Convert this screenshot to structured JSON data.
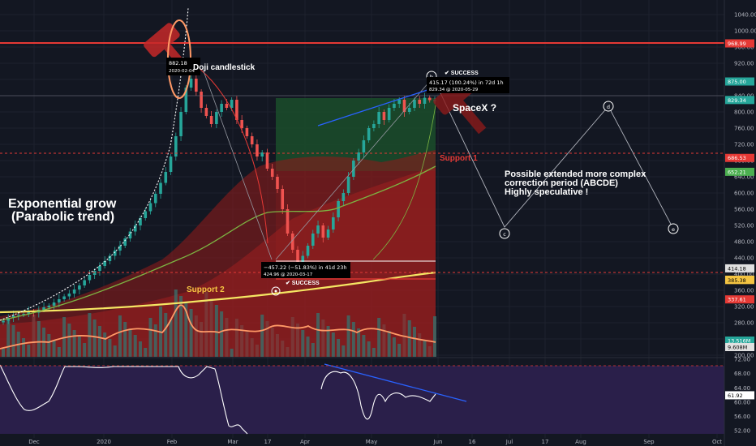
{
  "chart_data": {
    "type": "candlestick",
    "price_axis": {
      "range": [
        200,
        1060
      ],
      "ticks": [
        1040,
        1000,
        960,
        920,
        880,
        840,
        800,
        760,
        720,
        680,
        640,
        600,
        560,
        520,
        480,
        440,
        400,
        360,
        320,
        280,
        240,
        200
      ],
      "tick_labels": [
        "1040.00",
        "1000.00",
        "960.00",
        "920.00",
        "880.00",
        "840.00",
        "800.00",
        "760.00",
        "720.00",
        "680.00",
        "640.00",
        "600.00",
        "560.00",
        "520.00",
        "480.00",
        "440.00",
        "400.00",
        "360.00",
        "320.00",
        "280.00",
        "240.00",
        "200.00"
      ]
    },
    "rsi_axis": {
      "range": [
        50,
        72
      ],
      "ticks": [
        72,
        68,
        64,
        60,
        56,
        52
      ],
      "tick_labels": [
        "72.00",
        "68.00",
        "64.00",
        "60.00",
        "56.00",
        "52.00"
      ],
      "value_label": "61.92"
    },
    "time_axis": {
      "labels": [
        "Dec",
        "2020",
        "Feb",
        "Mar",
        "17",
        "Apr",
        "May",
        "Jun",
        "16",
        "Jul",
        "17",
        "Aug",
        "Sep",
        "Oct"
      ]
    },
    "price_badges": [
      {
        "label": "968.99",
        "value": 968.99,
        "color": "#e53935"
      },
      {
        "label": "875.00",
        "value": 875,
        "color": "#26a69a"
      },
      {
        "label": "829.34",
        "value": 829.34,
        "color": "#26a69a"
      },
      {
        "label": "686.53",
        "value": 686.53,
        "color": "#e53935"
      },
      {
        "label": "652.21",
        "value": 652.21,
        "color": "#4caf50"
      },
      {
        "label": "414.18",
        "value": 414.18,
        "color": "#e0e0e0"
      },
      {
        "label": "386.15",
        "value": 386.15,
        "color": "#f5c542"
      },
      {
        "label": "385.38",
        "value": 385.38,
        "color": "#f5c542"
      },
      {
        "label": "337.61",
        "value": 337.61,
        "color": "#e53935"
      },
      {
        "label": "13.516M",
        "value": 230,
        "color": "#26a69a"
      },
      {
        "label": "9.608M",
        "value": 214,
        "color": "#e0e0e0"
      }
    ],
    "closes": [
      285,
      292,
      298,
      300,
      302,
      308,
      305,
      312,
      318,
      322,
      330,
      338,
      345,
      352,
      362,
      372,
      385,
      398,
      408,
      420,
      432,
      445,
      458,
      470,
      488,
      505,
      520,
      538,
      555,
      575,
      598,
      625,
      652,
      690,
      740,
      800,
      860,
      882,
      850,
      810,
      790,
      770,
      800,
      820,
      810,
      830,
      780,
      760,
      740,
      720,
      690,
      700,
      660,
      640,
      610,
      560,
      500,
      460,
      430,
      445,
      470,
      500,
      520,
      490,
      510,
      540,
      580,
      600,
      640,
      680,
      700,
      730,
      760,
      770,
      800,
      780,
      810,
      820,
      830,
      800,
      810,
      830,
      820,
      835,
      829,
      829
    ]
  },
  "annotations": {
    "doji": "Doji candlestick",
    "top_value": "882.18",
    "top_date": "2020-02-04",
    "exponential_1": "Exponential grow",
    "exponential_2": "(Parabolic trend)",
    "support1": "Support 1",
    "support2": "Support 2",
    "spacex": "SpaceX ?",
    "measure_down_1": "−457.22 (−51.83%) in 41d 23h",
    "measure_down_2": "424.96 @ 2020-03-17",
    "measure_up_1": "415.17 (100.24%) in 72d 1h",
    "measure_up_2": "829.34 @ 2020-05-29",
    "success1": "✔ SUCCESS",
    "success2": "✔ SUCCESS",
    "possible_1": "Possible extended more complex",
    "possible_2": "correction period (ABCDE)",
    "possible_3": "Highly speculative !",
    "wave_labels": [
      "b",
      "c",
      "d",
      "e"
    ]
  },
  "colors": {
    "background": "#131722",
    "bull": "#26a69a",
    "bear": "#ef5350",
    "resistance": "#e53935",
    "ma_yellow": "#f5e663",
    "ma_green": "#7cb342",
    "volume_ma": "#ff9966",
    "rsi_bg": "#2a1f4a",
    "trend_blue": "#2962ff"
  }
}
